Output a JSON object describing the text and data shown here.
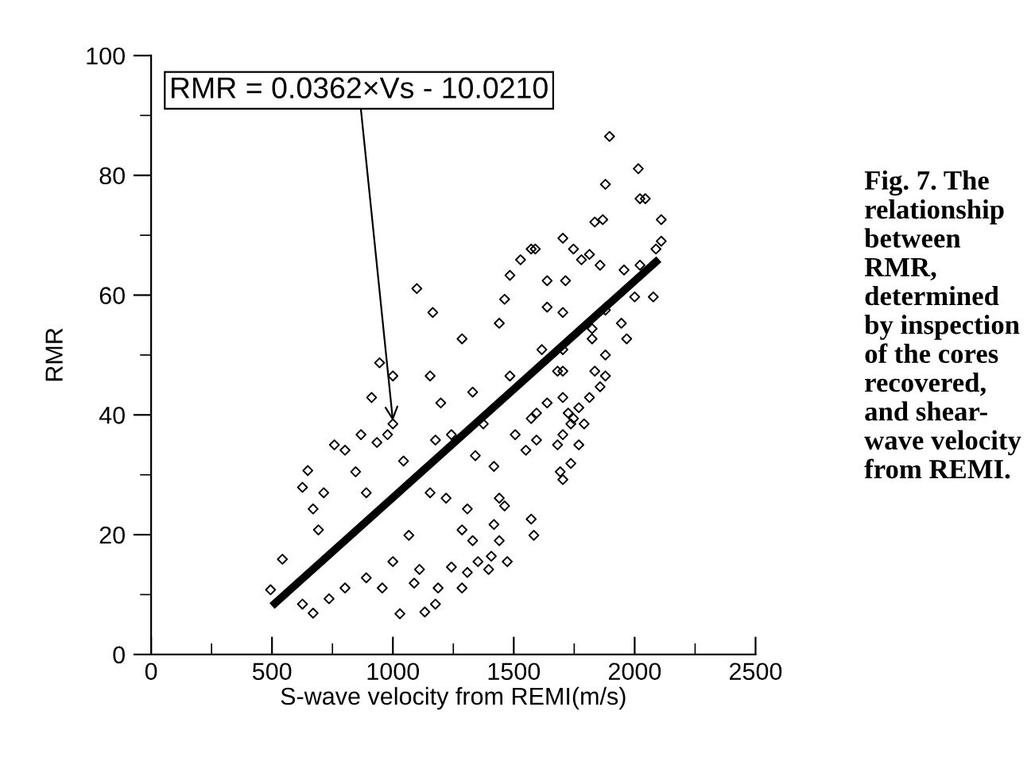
{
  "chart_data": {
    "type": "scatter",
    "xlabel": "S-wave velocity from REMI(m/s)",
    "ylabel": "RMR",
    "xlim": [
      0,
      2500
    ],
    "xticks": [
      0,
      500,
      1000,
      1500,
      2000,
      2500
    ],
    "ylim": [
      0,
      100
    ],
    "yticks": [
      0,
      20,
      40,
      60,
      80,
      100
    ],
    "grid": false,
    "legend": false,
    "annotations": [
      {
        "text": "RMR = 0.0362×Vs - 10.0210",
        "x": 1000,
        "y": 39
      },
      "Fig. 7. The\nrelationship\nbetween\nRMR,\ndetermined\nby inspection\nof the cores\nrecovered,\nand shear-\nwave velocity\nfrom REMI."
    ],
    "series": [
      {
        "marker": "diamond",
        "color": "#000000",
        "x": [
          543,
          494,
          626,
          670,
          648,
          626,
          670,
          692,
          714,
          758,
          802,
          736,
          802,
          846,
          868,
          890,
          934,
          978,
          912,
          945,
          1000,
          1000,
          1044,
          1066,
          1000,
          956,
          890,
          1029,
          1099,
          1132,
          1088,
          1110,
          1165,
          1154,
          1198,
          1242,
          1176,
          1154,
          1220,
          1187,
          1176,
          1286,
          1330,
          1374,
          1341,
          1308,
          1286,
          1242,
          1286,
          1308,
          1407,
          1352,
          1330,
          1418,
          1440,
          1462,
          1418,
          1396,
          1473,
          1440,
          1506,
          1484,
          1440,
          1462,
          1484,
          1528,
          1589,
          1583,
          1550,
          1594,
          1616,
          1638,
          1572,
          1572,
          1594,
          1638,
          1572,
          1638,
          1703,
          1714,
          1703,
          1681,
          1703,
          1725,
          1681,
          1692,
          1703,
          1769,
          1747,
          1703,
          1703,
          1703,
          1736,
          1736,
          1769,
          1791,
          1813,
          1747,
          1780,
          1813,
          1835,
          1868,
          1879,
          1896,
          1857,
          1879,
          1824,
          1879,
          1879,
          1857,
          1835,
          1824,
          1945,
          1967,
          1956,
          2000,
          2022,
          2015,
          2022,
          2044,
          2077,
          2110,
          2110,
          2088
        ],
        "values": [
          15.9,
          10.8,
          8.4,
          6.9,
          30.7,
          27.9,
          24.3,
          20.8,
          27.0,
          35.0,
          34.1,
          9.3,
          11.1,
          30.5,
          36.7,
          27.0,
          35.4,
          36.7,
          42.9,
          48.7,
          46.5,
          38.5,
          32.3,
          19.9,
          15.5,
          11.1,
          12.8,
          6.8,
          61.1,
          7.1,
          11.9,
          14.2,
          57.1,
          46.5,
          42.0,
          36.7,
          35.8,
          27.0,
          26.1,
          11.1,
          8.4,
          52.7,
          43.8,
          38.5,
          33.2,
          24.3,
          20.8,
          14.6,
          11.1,
          13.7,
          16.4,
          15.5,
          19.0,
          31.4,
          26.1,
          24.8,
          21.7,
          14.2,
          15.5,
          19.0,
          36.7,
          46.5,
          55.3,
          59.3,
          63.3,
          65.9,
          67.7,
          19.9,
          34.1,
          40.3,
          50.9,
          58.0,
          22.6,
          39.4,
          35.8,
          42.0,
          67.7,
          62.4,
          69.5,
          62.4,
          57.1,
          47.3,
          42.9,
          40.3,
          35.0,
          30.5,
          36.7,
          35.0,
          39.4,
          50.9,
          47.3,
          29.2,
          31.9,
          38.5,
          41.2,
          38.5,
          42.9,
          67.7,
          65.9,
          66.8,
          72.2,
          72.6,
          78.5,
          86.5,
          65.0,
          57.5,
          54.4,
          50.0,
          46.5,
          44.7,
          47.3,
          52.7,
          55.3,
          52.7,
          64.2,
          59.7,
          65.0,
          81.1,
          76.1,
          76.1,
          59.7,
          72.6,
          69.0,
          67.7
        ]
      },
      {
        "type": "line",
        "color": "#000000",
        "x": [
          500,
          2100
        ],
        "values": [
          8.1,
          66.0
        ]
      }
    ]
  }
}
